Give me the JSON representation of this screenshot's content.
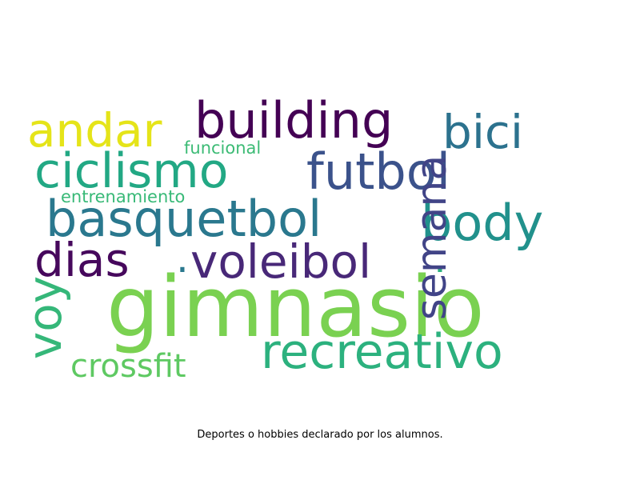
{
  "caption": "Deportes o hobbies declarado por los alumnos.",
  "colors": {
    "gimnasio": "#7ad151",
    "recreativo": "#2cb17e",
    "building": "#440154",
    "futbol": "#3b528b",
    "basquetbol": "#2a788e",
    "ciclismo": "#22a884",
    "andar": "#e5e419",
    "bici": "#2c728e",
    "body": "#21918c",
    "semana": "#414487",
    "voleibol": "#482878",
    "dias": "#46085c",
    "voy": "#35b779",
    "crossfit": "#5ec962",
    "funcional": "#3cbb75",
    "entrenamiento": "#38b977",
    "dot1": "#2a788e",
    "dot2": "#2cb17e"
  },
  "words": {
    "gimnasio": "gimnasio",
    "recreativo": "recreativo",
    "building": "building",
    "futbol": "futbol",
    "basquetbol": "basquetbol",
    "ciclismo": "ciclismo",
    "andar": "andar",
    "bici": "bici",
    "body": "body",
    "semana": "semana",
    "voleibol": "voleibol",
    "dias": "dias",
    "voy": "voy",
    "crossfit": "crossfit",
    "funcional": "funcional",
    "entrenamiento": "entrenamiento",
    "dot1": ".",
    "dot2": "."
  }
}
